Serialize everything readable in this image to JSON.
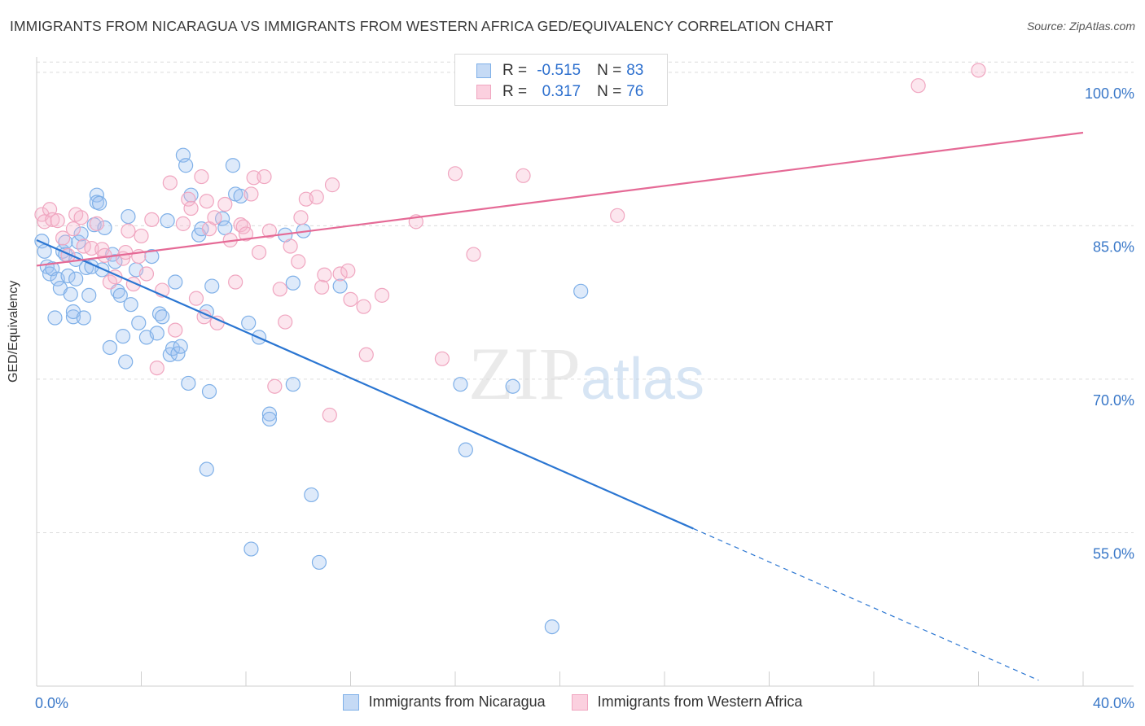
{
  "title": "IMMIGRANTS FROM NICARAGUA VS IMMIGRANTS FROM WESTERN AFRICA GED/EQUIVALENCY CORRELATION CHART",
  "source": "Source: ZipAtlas.com",
  "watermark": {
    "part1": "ZIP",
    "part2": "atlas"
  },
  "colors": {
    "blue": "#7fb0e8",
    "blue_line": "#2b76d2",
    "pink": "#f0a6c0",
    "pink_line": "#e56a96",
    "axis_text": "#3a78c8",
    "grid": "#dcdcdc"
  },
  "legend": {
    "r_label": "R =",
    "n_label": "N =",
    "rows": [
      {
        "r": "-0.515",
        "n": "83",
        "color": "blue"
      },
      {
        "r": "0.317",
        "n": "76",
        "color": "pink"
      }
    ]
  },
  "bottom_legend": [
    "Immigrants from Nicaragua",
    "Immigrants from Western Africa"
  ],
  "chart_data": {
    "type": "scatter",
    "title": "IMMIGRANTS FROM NICARAGUA VS IMMIGRANTS FROM WESTERN AFRICA GED/EQUIVALENCY CORRELATION CHART",
    "xlabel": "",
    "ylabel": "GED/Equivalency",
    "xlim": [
      0,
      40
    ],
    "ylim": [
      40,
      101.5
    ],
    "x_tick_labels": [
      "0.0%",
      "40.0%"
    ],
    "y_ticks": [
      55,
      70,
      85,
      100
    ],
    "y_tick_labels": [
      "55.0%",
      "70.0%",
      "85.0%",
      "100.0%"
    ],
    "grid": true,
    "legend_position": "top-center",
    "series": [
      {
        "name": "Immigrants from Nicaragua",
        "color": "blue",
        "r": -0.515,
        "n": 83,
        "trend": {
          "x0": 0,
          "y0": 83.6,
          "x1": 25.1,
          "y1": 55.4,
          "dash_to_x": 38.3
        },
        "points": [
          [
            0.2,
            83.5
          ],
          [
            0.3,
            82.5
          ],
          [
            0.4,
            81.0
          ],
          [
            0.5,
            80.3
          ],
          [
            0.6,
            80.8
          ],
          [
            0.7,
            76.0
          ],
          [
            0.8,
            79.8
          ],
          [
            0.9,
            78.9
          ],
          [
            1.0,
            82.5
          ],
          [
            1.1,
            83.4
          ],
          [
            1.1,
            82.2
          ],
          [
            1.2,
            80.1
          ],
          [
            1.3,
            78.3
          ],
          [
            1.4,
            76.1
          ],
          [
            1.4,
            76.6
          ],
          [
            1.5,
            81.7
          ],
          [
            1.5,
            79.8
          ],
          [
            1.6,
            83.4
          ],
          [
            1.7,
            84.2
          ],
          [
            1.8,
            76.0
          ],
          [
            1.9,
            80.9
          ],
          [
            2.0,
            78.2
          ],
          [
            2.1,
            81.0
          ],
          [
            2.2,
            85.1
          ],
          [
            2.3,
            88.0
          ],
          [
            2.3,
            87.3
          ],
          [
            2.4,
            87.2
          ],
          [
            2.5,
            80.7
          ],
          [
            2.6,
            84.8
          ],
          [
            2.8,
            73.1
          ],
          [
            2.9,
            82.2
          ],
          [
            3.0,
            81.5
          ],
          [
            3.1,
            78.6
          ],
          [
            3.2,
            78.2
          ],
          [
            3.3,
            74.2
          ],
          [
            3.4,
            71.7
          ],
          [
            3.5,
            85.9
          ],
          [
            3.6,
            77.3
          ],
          [
            3.8,
            80.7
          ],
          [
            3.9,
            75.5
          ],
          [
            4.2,
            74.1
          ],
          [
            4.4,
            82.0
          ],
          [
            4.6,
            74.5
          ],
          [
            4.7,
            76.4
          ],
          [
            4.8,
            76.1
          ],
          [
            5.0,
            85.5
          ],
          [
            5.1,
            72.4
          ],
          [
            5.2,
            73.0
          ],
          [
            5.3,
            79.5
          ],
          [
            5.4,
            72.5
          ],
          [
            5.5,
            73.2
          ],
          [
            5.6,
            91.9
          ],
          [
            5.7,
            90.9
          ],
          [
            5.8,
            69.6
          ],
          [
            5.9,
            88.0
          ],
          [
            6.2,
            84.1
          ],
          [
            6.3,
            84.7
          ],
          [
            6.5,
            76.6
          ],
          [
            6.6,
            68.8
          ],
          [
            6.7,
            79.1
          ],
          [
            7.1,
            85.7
          ],
          [
            7.2,
            84.8
          ],
          [
            7.5,
            90.9
          ],
          [
            7.6,
            88.1
          ],
          [
            7.8,
            87.9
          ],
          [
            8.1,
            75.5
          ],
          [
            8.5,
            74.1
          ],
          [
            8.9,
            66.6
          ],
          [
            8.9,
            66.1
          ],
          [
            9.5,
            84.1
          ],
          [
            9.8,
            79.4
          ],
          [
            9.8,
            69.5
          ],
          [
            10.2,
            84.5
          ],
          [
            10.5,
            58.7
          ],
          [
            10.8,
            52.1
          ],
          [
            11.6,
            79.1
          ],
          [
            16.2,
            69.5
          ],
          [
            16.4,
            63.1
          ],
          [
            18.2,
            69.3
          ],
          [
            19.7,
            45.8
          ],
          [
            20.8,
            78.6
          ],
          [
            6.5,
            61.2
          ],
          [
            8.2,
            53.4
          ]
        ]
      },
      {
        "name": "Immigrants from Western Africa",
        "color": "pink",
        "r": 0.317,
        "n": 76,
        "trend": {
          "x0": 0,
          "y0": 81.1,
          "x1": 40,
          "y1": 94.1
        },
        "points": [
          [
            0.2,
            86.1
          ],
          [
            0.3,
            85.4
          ],
          [
            0.5,
            86.6
          ],
          [
            0.6,
            85.6
          ],
          [
            0.8,
            85.5
          ],
          [
            1.0,
            83.8
          ],
          [
            1.2,
            82.1
          ],
          [
            1.4,
            84.7
          ],
          [
            1.5,
            86.1
          ],
          [
            1.7,
            85.8
          ],
          [
            1.8,
            83.0
          ],
          [
            2.1,
            82.8
          ],
          [
            2.3,
            85.2
          ],
          [
            2.5,
            82.7
          ],
          [
            2.6,
            82.1
          ],
          [
            2.8,
            79.5
          ],
          [
            3.0,
            80.0
          ],
          [
            3.3,
            81.8
          ],
          [
            3.5,
            84.5
          ],
          [
            3.7,
            79.3
          ],
          [
            3.9,
            82.0
          ],
          [
            4.0,
            84.0
          ],
          [
            4.2,
            80.3
          ],
          [
            4.4,
            85.6
          ],
          [
            4.6,
            71.1
          ],
          [
            4.8,
            78.7
          ],
          [
            5.1,
            89.2
          ],
          [
            5.3,
            74.8
          ],
          [
            5.6,
            85.2
          ],
          [
            5.8,
            87.6
          ],
          [
            5.9,
            86.7
          ],
          [
            6.1,
            77.9
          ],
          [
            6.3,
            89.8
          ],
          [
            6.5,
            87.4
          ],
          [
            6.6,
            84.7
          ],
          [
            6.8,
            85.8
          ],
          [
            6.9,
            75.5
          ],
          [
            7.2,
            87.1
          ],
          [
            7.4,
            83.6
          ],
          [
            7.6,
            79.5
          ],
          [
            7.8,
            85.1
          ],
          [
            7.9,
            84.9
          ],
          [
            8.0,
            84.2
          ],
          [
            8.2,
            88.1
          ],
          [
            8.3,
            89.7
          ],
          [
            8.5,
            82.4
          ],
          [
            8.7,
            89.8
          ],
          [
            8.9,
            84.5
          ],
          [
            9.1,
            69.3
          ],
          [
            9.3,
            78.8
          ],
          [
            9.5,
            75.6
          ],
          [
            9.7,
            83.0
          ],
          [
            10.1,
            85.8
          ],
          [
            10.3,
            87.6
          ],
          [
            10.7,
            87.8
          ],
          [
            10.9,
            79.0
          ],
          [
            11.0,
            80.2
          ],
          [
            11.2,
            66.5
          ],
          [
            11.3,
            89.0
          ],
          [
            11.6,
            80.3
          ],
          [
            11.9,
            80.6
          ],
          [
            12.0,
            77.8
          ],
          [
            12.5,
            77.1
          ],
          [
            12.6,
            72.4
          ],
          [
            13.2,
            78.2
          ],
          [
            14.5,
            85.4
          ],
          [
            15.5,
            72.0
          ],
          [
            16.0,
            90.1
          ],
          [
            16.7,
            82.2
          ],
          [
            18.6,
            89.9
          ],
          [
            22.2,
            86.0
          ],
          [
            33.7,
            98.7
          ],
          [
            36.0,
            100.2
          ],
          [
            6.4,
            76.1
          ],
          [
            3.4,
            82.4
          ],
          [
            10.0,
            81.5
          ]
        ]
      }
    ]
  }
}
